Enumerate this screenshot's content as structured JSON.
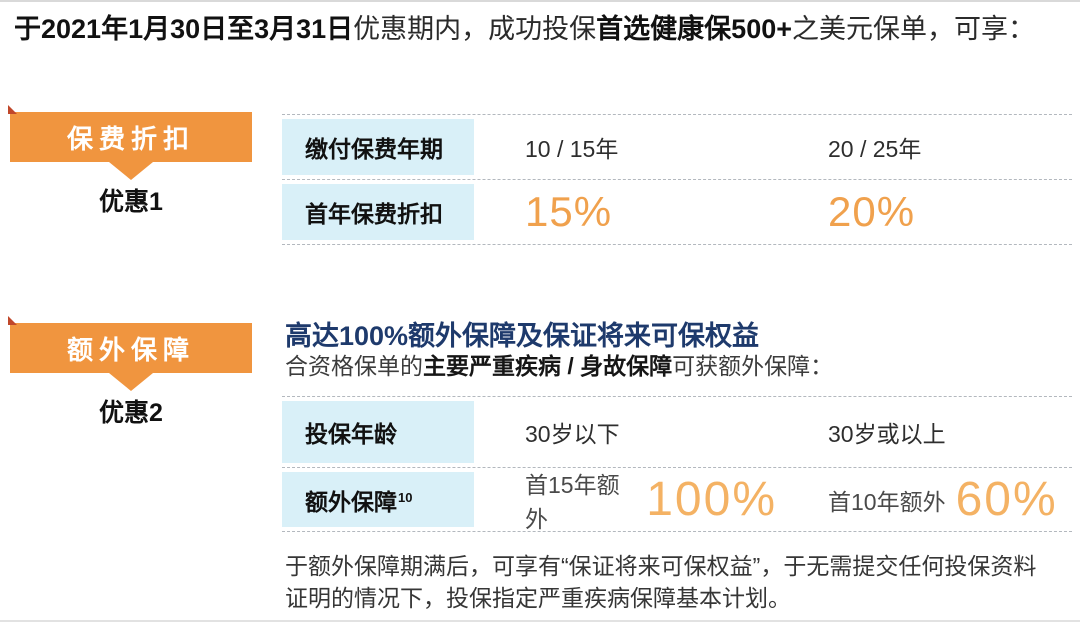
{
  "intro": {
    "bold1": "于2021年1月30日至3月31日",
    "regular1": "优惠期内，成功投保",
    "bold2": "首选健康保500+",
    "regular2": "之美元保单，可享："
  },
  "section1": {
    "ribbon_label": "保费折扣",
    "badge_label": "优惠1",
    "table": {
      "rows": [
        {
          "label": "缴付保费年期",
          "col1": "10 / 15年",
          "col2": "20 / 25年"
        },
        {
          "label": "首年保费折扣",
          "col1": "15%",
          "col2": "20%"
        }
      ]
    }
  },
  "section2": {
    "ribbon_label": "额外保障",
    "badge_label": "优惠2",
    "title": "高达100%额外保障及保证将来可保权益",
    "subtitle_regular1": "合资格保单的",
    "subtitle_bold": "主要严重疾病 / 身故保障",
    "subtitle_regular2": "可获额外保障：",
    "table": {
      "rows": [
        {
          "label": "投保年龄",
          "col1": "30岁以下",
          "col2": "30岁或以上"
        },
        {
          "label": "额外保障",
          "label_sup": "10",
          "col1_prefix": "首15年额外",
          "col1_value": "100%",
          "col2_prefix": "首10年额外",
          "col2_value": "60%"
        }
      ]
    },
    "footnote_line1": "于额外保障期满后，可享有“保证将来可保权益”，于无需提交任何投保资料",
    "footnote_line2": "证明的情况下，投保指定严重疾病保障基本计划。"
  },
  "colors": {
    "ribbon_orange": "#f0953f",
    "fold_red": "#c0472a",
    "percent_orange_small": "#f0a14d",
    "percent_orange_large": "#f4b264",
    "cell_blue": "#d9f0f8",
    "title_navy": "#1e3a6c"
  }
}
